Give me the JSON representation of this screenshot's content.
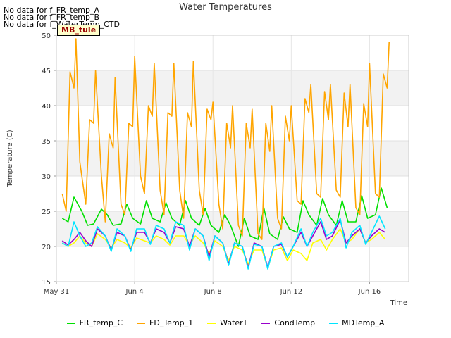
{
  "no_data_messages": [
    "No data for f_FR_temp_A",
    "No data for f_FR_temp_B",
    "No data for f_WaterTemp_CTD"
  ],
  "site_label": "MB_tule",
  "chart_data": {
    "type": "line",
    "title": "Water Temperatures",
    "xlabel": "Time",
    "ylabel": "Temperature (C)",
    "xlim": [
      "2023-05-31",
      "2023-06-18"
    ],
    "ylim": [
      15,
      50
    ],
    "x_ticks": [
      "May 31",
      "Jun 4",
      "Jun 8",
      "Jun 12",
      "Jun 16"
    ],
    "y_ticks": [
      15,
      20,
      25,
      30,
      35,
      40,
      45,
      50
    ],
    "background_bands": [
      [
        20,
        25
      ],
      [
        30,
        35
      ],
      [
        40,
        45
      ]
    ],
    "grid": true,
    "legend_position": "bottom",
    "series": [
      {
        "name": "FR_temp_C",
        "color": "#00e000",
        "x": [
          0.3,
          0.6,
          0.9,
          1.3,
          1.6,
          1.9,
          2.3,
          2.6,
          2.9,
          3.3,
          3.6,
          3.9,
          4.3,
          4.6,
          4.9,
          5.3,
          5.6,
          5.9,
          6.3,
          6.6,
          6.9,
          7.3,
          7.6,
          7.9,
          8.3,
          8.6,
          8.9,
          9.3,
          9.6,
          9.9,
          10.3,
          10.6,
          10.9,
          11.3,
          11.6,
          11.9,
          12.3,
          12.6,
          12.9,
          13.3,
          13.6,
          13.9,
          14.3,
          14.6,
          14.9,
          15.3,
          15.6,
          15.9,
          16.3,
          16.6,
          16.9
        ],
        "y": [
          24.0,
          23.5,
          27.0,
          25.0,
          23.0,
          23.2,
          25.3,
          24.5,
          23.0,
          23.2,
          26.0,
          24.0,
          23.2,
          26.5,
          24.0,
          23.5,
          26.2,
          24.0,
          23.0,
          26.5,
          24.0,
          23.0,
          25.4,
          23.0,
          22.0,
          24.5,
          23.0,
          20.0,
          24.0,
          21.5,
          21.0,
          25.5,
          21.8,
          21.0,
          24.2,
          22.5,
          22.0,
          26.5,
          24.5,
          23.0,
          26.8,
          24.5,
          23.0,
          26.5,
          23.5,
          23.5,
          27.2,
          24.0,
          24.5,
          28.3,
          25.5
        ]
      },
      {
        "name": "FD_Temp_1",
        "color": "#ffa500",
        "x": [
          0.3,
          0.5,
          0.7,
          0.9,
          1.0,
          1.2,
          1.5,
          1.7,
          1.9,
          2.0,
          2.3,
          2.5,
          2.7,
          2.9,
          3.0,
          3.3,
          3.5,
          3.7,
          3.9,
          4.0,
          4.3,
          4.5,
          4.7,
          4.9,
          5.0,
          5.3,
          5.5,
          5.7,
          5.9,
          6.0,
          6.3,
          6.5,
          6.7,
          6.9,
          7.0,
          7.3,
          7.5,
          7.7,
          7.9,
          8.0,
          8.3,
          8.5,
          8.7,
          8.9,
          9.0,
          9.3,
          9.5,
          9.7,
          9.9,
          10.0,
          10.3,
          10.5,
          10.7,
          10.9,
          11.0,
          11.3,
          11.5,
          11.7,
          11.9,
          12.0,
          12.3,
          12.5,
          12.7,
          12.9,
          13.0,
          13.3,
          13.5,
          13.7,
          13.9,
          14.0,
          14.3,
          14.5,
          14.7,
          14.9,
          15.0,
          15.3,
          15.5,
          15.7,
          15.9,
          16.0,
          16.3,
          16.5,
          16.7,
          16.9,
          17.0
        ],
        "y": [
          27.5,
          25.0,
          44.8,
          42.5,
          49.5,
          32.0,
          26.0,
          38.0,
          37.5,
          45.0,
          30.0,
          23.5,
          36.0,
          34.0,
          44.0,
          26.0,
          24.5,
          37.5,
          37.0,
          47.0,
          30.0,
          27.5,
          40.0,
          38.5,
          46.0,
          28.0,
          24.5,
          39.0,
          38.5,
          46.0,
          28.0,
          24.0,
          39.0,
          37.0,
          46.3,
          28.0,
          24.5,
          39.5,
          38.0,
          40.5,
          26.0,
          22.5,
          37.5,
          34.0,
          40.0,
          23.0,
          21.5,
          37.5,
          34.0,
          39.5,
          21.8,
          21.0,
          37.5,
          33.5,
          40.0,
          24.0,
          22.5,
          38.5,
          35.0,
          40.0,
          26.5,
          26.0,
          41.0,
          39.0,
          43.0,
          27.5,
          27.0,
          42.0,
          38.0,
          43.0,
          28.0,
          27.0,
          41.8,
          37.0,
          43.0,
          25.5,
          24.5,
          40.3,
          37.0,
          46.0,
          27.5,
          27.0,
          44.5,
          42.5,
          49.0
        ]
      },
      {
        "name": "WaterT",
        "color": "#ffff00",
        "x": [
          0.3,
          0.6,
          0.9,
          1.2,
          1.5,
          1.8,
          2.1,
          2.5,
          2.8,
          3.1,
          3.5,
          3.8,
          4.1,
          4.5,
          4.8,
          5.1,
          5.5,
          5.8,
          6.1,
          6.5,
          6.8,
          7.1,
          7.5,
          7.8,
          8.1,
          8.5,
          8.8,
          9.1,
          9.5,
          9.8,
          10.1,
          10.5,
          10.8,
          11.1,
          11.5,
          11.8,
          12.1,
          12.5,
          12.8,
          13.1,
          13.5,
          13.8,
          14.1,
          14.5,
          14.8,
          15.1,
          15.5,
          15.8,
          16.1,
          16.5,
          16.8
        ],
        "y": [
          20.5,
          20.0,
          20.5,
          21.5,
          20.5,
          20.0,
          21.8,
          21.0,
          19.8,
          21.0,
          20.5,
          19.8,
          21.2,
          20.8,
          20.5,
          21.5,
          21.0,
          20.2,
          21.5,
          21.5,
          20.2,
          21.5,
          20.5,
          19.0,
          20.8,
          20.0,
          18.0,
          20.0,
          19.5,
          17.5,
          19.5,
          19.5,
          17.0,
          19.5,
          19.8,
          18.0,
          19.5,
          19.0,
          18.0,
          20.5,
          21.0,
          19.5,
          21.0,
          22.5,
          20.5,
          21.0,
          22.5,
          20.5,
          21.0,
          22.0,
          21.0
        ]
      },
      {
        "name": "CondTemp",
        "color": "#9900cc",
        "x": [
          0.3,
          0.6,
          0.9,
          1.2,
          1.5,
          1.8,
          2.1,
          2.5,
          2.8,
          3.1,
          3.5,
          3.8,
          4.1,
          4.5,
          4.8,
          5.1,
          5.5,
          5.8,
          6.1,
          6.5,
          6.8,
          7.1,
          7.5,
          7.8,
          8.1,
          8.5,
          8.8,
          9.1,
          9.5,
          9.8,
          10.1,
          10.5,
          10.8,
          11.1,
          11.5,
          11.8,
          12.1,
          12.5,
          12.8,
          13.1,
          13.5,
          13.8,
          14.1,
          14.5,
          14.8,
          15.1,
          15.5,
          15.8,
          16.1,
          16.5,
          16.8
        ],
        "y": [
          20.8,
          20.2,
          21.0,
          22.0,
          20.8,
          20.0,
          22.5,
          21.5,
          19.5,
          22.0,
          21.5,
          19.5,
          22.0,
          22.0,
          20.5,
          22.5,
          22.0,
          20.5,
          22.8,
          22.5,
          20.0,
          22.5,
          21.5,
          18.5,
          21.5,
          20.5,
          17.5,
          20.5,
          20.0,
          17.0,
          20.5,
          20.0,
          17.0,
          20.0,
          20.3,
          18.5,
          20.0,
          22.0,
          20.0,
          21.5,
          23.5,
          21.0,
          21.5,
          23.8,
          20.5,
          21.5,
          22.5,
          20.5,
          21.5,
          22.5,
          22.0
        ]
      },
      {
        "name": "MDTemp_A",
        "color": "#00e5ff",
        "x": [
          0.3,
          0.6,
          0.9,
          1.2,
          1.5,
          1.8,
          2.1,
          2.5,
          2.8,
          3.1,
          3.5,
          3.8,
          4.1,
          4.5,
          4.8,
          5.1,
          5.5,
          5.8,
          6.1,
          6.5,
          6.8,
          7.1,
          7.5,
          7.8,
          8.1,
          8.5,
          8.8,
          9.1,
          9.5,
          9.8,
          10.1,
          10.5,
          10.8,
          11.1,
          11.5,
          11.8,
          12.1,
          12.5,
          12.8,
          13.1,
          13.5,
          13.8,
          14.1,
          14.5,
          14.8,
          15.1,
          15.5,
          15.8,
          16.1,
          16.5,
          16.8
        ],
        "y": [
          20.5,
          20.0,
          23.5,
          21.5,
          20.0,
          20.5,
          22.8,
          21.5,
          19.3,
          22.5,
          21.5,
          19.3,
          22.5,
          22.5,
          20.3,
          23.0,
          22.5,
          20.5,
          23.5,
          23.0,
          19.5,
          22.5,
          21.5,
          18.0,
          21.5,
          20.5,
          17.3,
          20.5,
          20.0,
          16.8,
          20.3,
          20.0,
          16.8,
          20.0,
          20.5,
          18.5,
          20.0,
          22.5,
          20.0,
          22.0,
          24.0,
          21.5,
          22.0,
          24.0,
          19.8,
          22.0,
          23.0,
          20.3,
          22.0,
          24.3,
          22.5
        ]
      }
    ]
  }
}
